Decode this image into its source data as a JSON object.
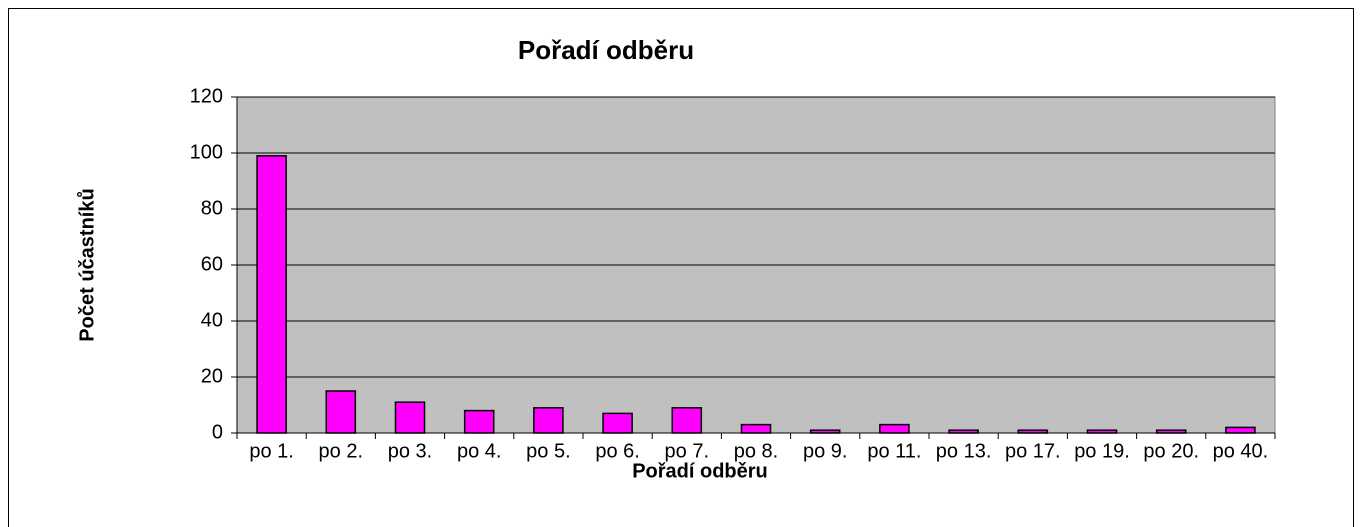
{
  "chart_data": {
    "type": "bar",
    "title": "Pořadí odběru",
    "x_label": "Pořadí odběru",
    "y_label": "Počet účastníků",
    "categories": [
      "po 1.",
      "po 2.",
      "po 3.",
      "po 4.",
      "po 5.",
      "po 6.",
      "po 7.",
      "po 8.",
      "po 9.",
      "po 11.",
      "po 13.",
      "po 17.",
      "po 19.",
      "po 20.",
      "po 40."
    ],
    "values": [
      99,
      15,
      11,
      8,
      9,
      7,
      9,
      3,
      1,
      3,
      1,
      1,
      1,
      1,
      2
    ],
    "color": "#ff00ff",
    "ylim": [
      0,
      120
    ],
    "yticks": [
      0,
      20,
      40,
      60,
      80,
      100,
      120
    ],
    "grid": true
  }
}
